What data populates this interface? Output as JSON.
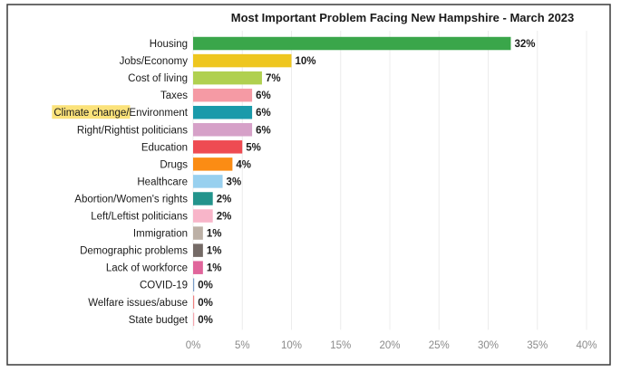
{
  "chart_data": {
    "type": "bar",
    "orientation": "horizontal",
    "title": "Most Important Problem Facing New Hampshire - March 2023",
    "categories": [
      "Housing",
      "Jobs/Economy",
      "Cost of living",
      "Taxes",
      "Climate change/Environment",
      "Right/Rightist politicians",
      "Education",
      "Drugs",
      "Healthcare",
      "Abortion/Women's rights",
      "Left/Leftist politicians",
      "Immigration",
      "Demographic problems",
      "Lack of workforce",
      "COVID-19",
      "Welfare issues/abuse",
      "State budget"
    ],
    "values": [
      32.3,
      10,
      7,
      6,
      6,
      6,
      5,
      4,
      3,
      2,
      2,
      1,
      1,
      1,
      0,
      0,
      0
    ],
    "value_labels": [
      "32%",
      "10%",
      "7%",
      "6%",
      "6%",
      "6%",
      "5%",
      "4%",
      "3%",
      "2%",
      "2%",
      "1%",
      "1%",
      "1%",
      "0%",
      "0%",
      "0%"
    ],
    "colors": [
      "#3aa64a",
      "#eec61f",
      "#b0d050",
      "#f59aa4",
      "#1a9aaa",
      "#d6a1c8",
      "#ee4b52",
      "#fb8c14",
      "#98d0ef",
      "#23948c",
      "#f8b5c9",
      "#bcb0a6",
      "#746a66",
      "#e0659b",
      "#7b9dc8",
      "#f08080",
      "#f4a7b0"
    ],
    "xlim": [
      0,
      40
    ],
    "x_ticks": [
      0,
      5,
      10,
      15,
      20,
      25,
      30,
      35,
      40
    ],
    "x_tick_labels": [
      "0%",
      "5%",
      "10%",
      "15%",
      "20%",
      "25%",
      "30%",
      "35%",
      "40%"
    ],
    "grid": "vertical",
    "highlight": {
      "category_index": 4,
      "text": "Climate change/",
      "color": "#fbe27a"
    }
  }
}
